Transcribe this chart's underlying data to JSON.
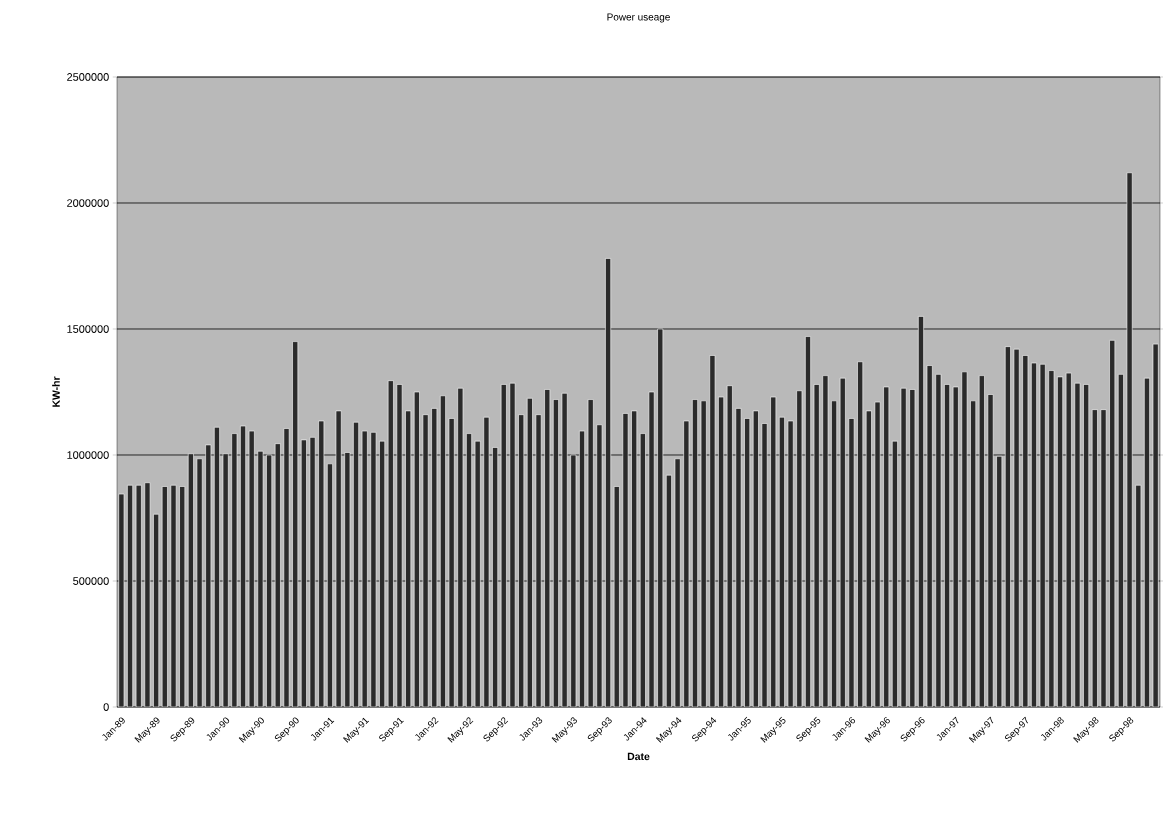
{
  "chart_data": {
    "type": "bar",
    "title": "Power useage",
    "xlabel": "Date",
    "ylabel": "KW-hr",
    "categories": [
      "Jan-89",
      null,
      null,
      null,
      "May-89",
      null,
      null,
      null,
      "Sep-89",
      null,
      null,
      null,
      "Jan-90",
      null,
      null,
      null,
      "May-90",
      null,
      null,
      null,
      "Sep-90",
      null,
      null,
      null,
      "Jan-91",
      null,
      null,
      null,
      "May-91",
      null,
      null,
      null,
      "Sep-91",
      null,
      null,
      null,
      "Jan-92",
      null,
      null,
      null,
      "May-92",
      null,
      null,
      null,
      "Sep-92",
      null,
      null,
      null,
      "Jan-93",
      null,
      null,
      null,
      "May-93",
      null,
      null,
      null,
      "Sep-93",
      null,
      null,
      null,
      "Jan-94",
      null,
      null,
      null,
      "May-94",
      null,
      null,
      null,
      "Sep-94",
      null,
      null,
      null,
      "Jan-95",
      null,
      null,
      null,
      "May-95",
      null,
      null,
      null,
      "Sep-95",
      null,
      null,
      null,
      "Jan-96",
      null,
      null,
      null,
      "May-96",
      null,
      null,
      null,
      "Sep-96",
      null,
      null,
      null,
      "Jan-97",
      null,
      null,
      null,
      "May-97",
      null,
      null,
      null,
      "Sep-97",
      null,
      null,
      null,
      "Jan-98",
      null,
      null,
      null,
      "May-98",
      null,
      null,
      null,
      "Sep-98",
      null,
      null,
      null
    ],
    "values": [
      845000,
      880000,
      880000,
      890000,
      765000,
      875000,
      880000,
      875000,
      1005000,
      985000,
      1040000,
      1110000,
      1005000,
      1085000,
      1115000,
      1095000,
      1015000,
      1000000,
      1045000,
      1105000,
      1450000,
      1060000,
      1070000,
      1135000,
      965000,
      1175000,
      1010000,
      1130000,
      1095000,
      1090000,
      1055000,
      1295000,
      1280000,
      1175000,
      1250000,
      1160000,
      1185000,
      1235000,
      1145000,
      1265000,
      1085000,
      1055000,
      1150000,
      1030000,
      1280000,
      1285000,
      1160000,
      1225000,
      1160000,
      1260000,
      1220000,
      1245000,
      1000000,
      1095000,
      1220000,
      1120000,
      1780000,
      875000,
      1165000,
      1175000,
      1085000,
      1250000,
      1500000,
      920000,
      985000,
      1135000,
      1220000,
      1215000,
      1395000,
      1230000,
      1275000,
      1185000,
      1145000,
      1175000,
      1125000,
      1230000,
      1150000,
      1135000,
      1255000,
      1470000,
      1280000,
      1315000,
      1215000,
      1305000,
      1145000,
      1370000,
      1175000,
      1210000,
      1270000,
      1055000,
      1265000,
      1260000,
      1550000,
      1355000,
      1320000,
      1280000,
      1270000,
      1330000,
      1215000,
      1315000,
      1240000,
      995000,
      1430000,
      1420000,
      1395000,
      1365000,
      1360000,
      1335000,
      1310000,
      1325000,
      1285000,
      1280000,
      1180000,
      1180000,
      1455000,
      1320000,
      2120000,
      880000,
      1305000,
      1440000
    ],
    "color": "#2b2b2b",
    "ylim": [
      0,
      2500000
    ],
    "yticks": [
      0,
      500000,
      1000000,
      1500000,
      2000000,
      2500000
    ],
    "grid": "y"
  }
}
